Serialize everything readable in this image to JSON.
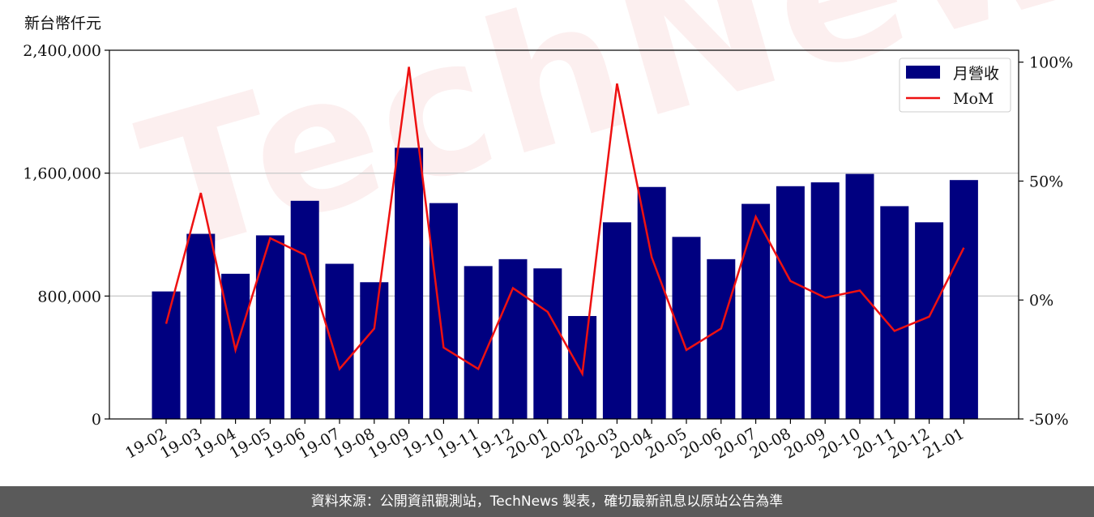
{
  "unit_label": "新台幣仟元",
  "footer_text": "資料來源：公開資訊觀測站，TechNews 製表，確切最新訊息以原站公告為準",
  "watermark_text": "TechNews",
  "colors": {
    "bar": "#000080",
    "line": "#ee1111",
    "grid": "#cccccc"
  },
  "chart_data": {
    "type": "bar",
    "categories": [
      "19-02",
      "19-03",
      "19-04",
      "19-05",
      "19-06",
      "19-07",
      "19-08",
      "19-09",
      "19-10",
      "19-11",
      "19-12",
      "20-01",
      "20-02",
      "20-03",
      "20-04",
      "20-05",
      "20-06",
      "20-07",
      "20-08",
      "20-09",
      "20-10",
      "20-11",
      "20-12",
      "21-01"
    ],
    "series": [
      {
        "name": "月營收",
        "type": "bar",
        "axis": "left",
        "values": [
          830000,
          1205000,
          945000,
          1195000,
          1420000,
          1010000,
          890000,
          1765000,
          1405000,
          995000,
          1040000,
          980000,
          670000,
          1280000,
          1510000,
          1185000,
          1040000,
          1400000,
          1515000,
          1540000,
          1595000,
          1385000,
          1280000,
          1555000
        ]
      },
      {
        "name": "MoM",
        "type": "line",
        "axis": "right",
        "values": [
          -10,
          45,
          -21,
          26,
          19,
          -29,
          -12,
          98,
          -20,
          -29,
          5,
          -5,
          -31,
          91,
          18,
          -21,
          -12,
          35,
          8,
          1,
          4,
          -13,
          -7,
          22
        ]
      }
    ],
    "left_axis": {
      "ticks": [
        "0",
        "800,000",
        "1,600,000",
        "2,400,000"
      ],
      "ylim": [
        0,
        2400000
      ],
      "tick_values": [
        0,
        800000,
        1600000,
        2400000
      ]
    },
    "right_axis": {
      "ticks": [
        "-50%",
        "0%",
        "50%",
        "100%"
      ],
      "ylim": [
        -50,
        105
      ],
      "tick_values": [
        -50,
        0,
        50,
        100
      ]
    },
    "grid": "horizontal",
    "legend_placement": "top-right"
  }
}
